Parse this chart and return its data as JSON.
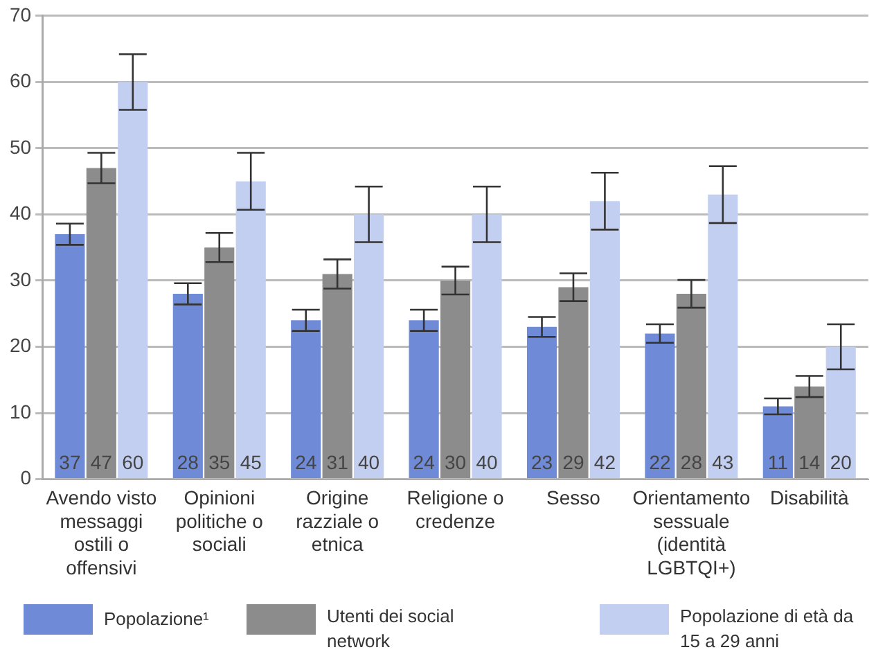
{
  "chart_data": {
    "type": "bar",
    "categories": [
      "Avendo visto messaggi ostili o offensivi",
      "Opinioni politiche o sociali",
      "Origine razziale o etnica",
      "Religione o credenze",
      "Sesso",
      "Orientamento sessuale (identità LGBTQI+)",
      "Disabilità"
    ],
    "series": [
      {
        "name": "Popolazione¹",
        "color": "#6f8ad6",
        "values": [
          37,
          28,
          24,
          24,
          23,
          22,
          11
        ],
        "errors": [
          1.6,
          1.6,
          1.6,
          1.6,
          1.5,
          1.4,
          1.2
        ]
      },
      {
        "name": "Utenti dei social network",
        "color": "#8c8c8c",
        "values": [
          47,
          35,
          31,
          30,
          29,
          28,
          14
        ],
        "errors": [
          2.3,
          2.2,
          2.2,
          2.1,
          2.1,
          2.1,
          1.6
        ]
      },
      {
        "name": "Popolazione di età da 15 a 29 anni",
        "color": "#c3cff0",
        "values": [
          60,
          45,
          40,
          40,
          42,
          43,
          20
        ],
        "errors": [
          4.2,
          4.3,
          4.2,
          4.2,
          4.3,
          4.3,
          3.4
        ]
      }
    ],
    "ylim": [
      0,
      70
    ],
    "yticks": [
      0,
      10,
      20,
      30,
      40,
      50,
      60,
      70
    ],
    "grid": "y",
    "legend": "bottom",
    "data_labels": true
  }
}
